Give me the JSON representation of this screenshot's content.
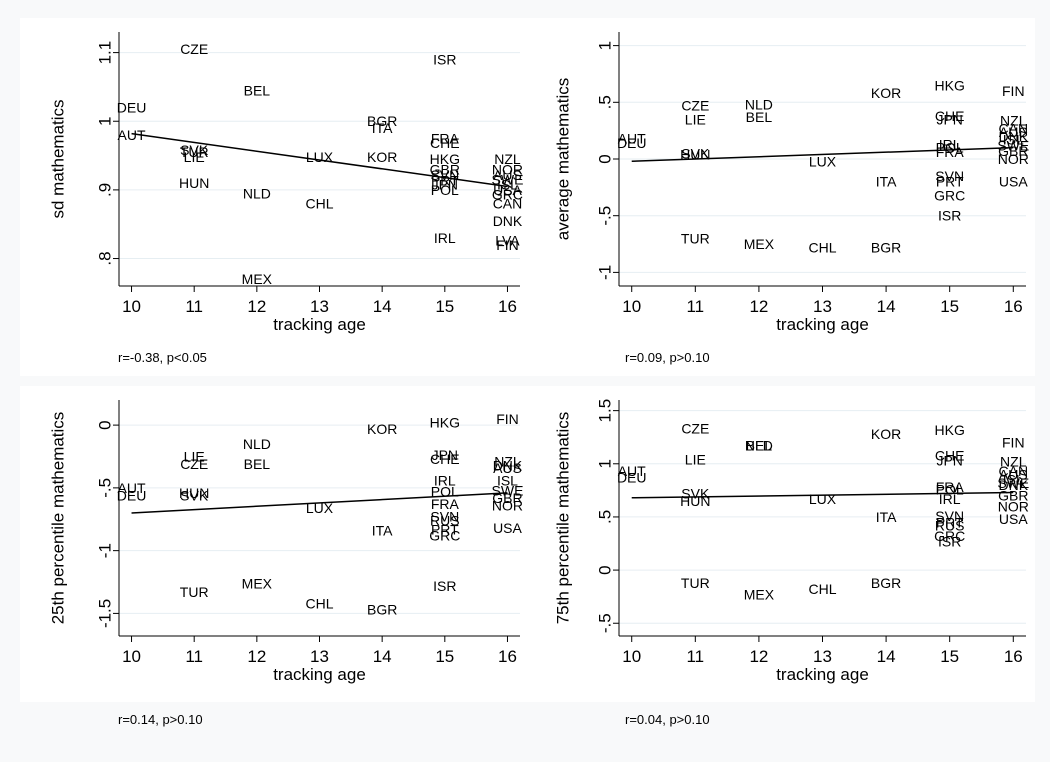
{
  "chart_data": [
    {
      "type": "scatter",
      "ylabel": "sd mathematics",
      "xlabel": "tracking age",
      "xlim": [
        9.8,
        16.2
      ],
      "ylim": [
        0.76,
        1.13
      ],
      "x_ticks": [
        10,
        11,
        12,
        13,
        14,
        15,
        16
      ],
      "y_ticks": [
        {
          "v": 0.8,
          "label": ".8"
        },
        {
          "v": 0.9,
          "label": ".9"
        },
        {
          "v": 1.0,
          "label": "1"
        },
        {
          "v": 1.1,
          "label": "1.1"
        }
      ],
      "fit_line": {
        "x": [
          10,
          16
        ],
        "y": [
          0.982,
          0.905
        ]
      },
      "stat": "r=-0.38, p<0.05",
      "points": [
        {
          "label": "CZE",
          "x": 11,
          "y": 1.105
        },
        {
          "label": "ISR",
          "x": 15,
          "y": 1.09
        },
        {
          "label": "BEL",
          "x": 12,
          "y": 1.045
        },
        {
          "label": "DEU",
          "x": 10,
          "y": 1.02
        },
        {
          "label": "BGR",
          "x": 14,
          "y": 1.0
        },
        {
          "label": "ITA",
          "x": 14,
          "y": 0.99
        },
        {
          "label": "AUT",
          "x": 10,
          "y": 0.98
        },
        {
          "label": "FRA",
          "x": 15,
          "y": 0.975
        },
        {
          "label": "CHE",
          "x": 15,
          "y": 0.968
        },
        {
          "label": "SVK",
          "x": 11,
          "y": 0.958
        },
        {
          "label": "TUR",
          "x": 11,
          "y": 0.955
        },
        {
          "label": "LIE",
          "x": 11,
          "y": 0.948
        },
        {
          "label": "LUX",
          "x": 13,
          "y": 0.948
        },
        {
          "label": "KOR",
          "x": 14,
          "y": 0.948
        },
        {
          "label": "HKG",
          "x": 15,
          "y": 0.945
        },
        {
          "label": "NZL",
          "x": 16,
          "y": 0.945
        },
        {
          "label": "GBR",
          "x": 15,
          "y": 0.93
        },
        {
          "label": "NOR",
          "x": 16,
          "y": 0.93
        },
        {
          "label": "SVN",
          "x": 15,
          "y": 0.922
        },
        {
          "label": "AUS",
          "x": 16,
          "y": 0.922
        },
        {
          "label": "PRT",
          "x": 15,
          "y": 0.914
        },
        {
          "label": "SWE",
          "x": 16,
          "y": 0.915
        },
        {
          "label": "HUN",
          "x": 11,
          "y": 0.91
        },
        {
          "label": "JPN",
          "x": 15,
          "y": 0.908
        },
        {
          "label": "ISL",
          "x": 16,
          "y": 0.908
        },
        {
          "label": "POL",
          "x": 15,
          "y": 0.9
        },
        {
          "label": "USA",
          "x": 16,
          "y": 0.9
        },
        {
          "label": "NLD",
          "x": 12,
          "y": 0.895
        },
        {
          "label": "GRC",
          "x": 16,
          "y": 0.893
        },
        {
          "label": "CHL",
          "x": 13,
          "y": 0.88
        },
        {
          "label": "CAN",
          "x": 16,
          "y": 0.88
        },
        {
          "label": "DNK",
          "x": 16,
          "y": 0.855
        },
        {
          "label": "IRL",
          "x": 15,
          "y": 0.83
        },
        {
          "label": "LVA",
          "x": 16,
          "y": 0.826
        },
        {
          "label": "FIN",
          "x": 16,
          "y": 0.82
        },
        {
          "label": "MEX",
          "x": 12,
          "y": 0.77
        }
      ]
    },
    {
      "type": "scatter",
      "ylabel": "average mathematics",
      "xlabel": "tracking age",
      "xlim": [
        9.8,
        16.2
      ],
      "ylim": [
        -1.12,
        1.12
      ],
      "x_ticks": [
        10,
        11,
        12,
        13,
        14,
        15,
        16
      ],
      "y_ticks": [
        {
          "v": -1,
          "label": "-1"
        },
        {
          "v": -0.5,
          "label": "-.5"
        },
        {
          "v": 0,
          "label": "0"
        },
        {
          "v": 0.5,
          "label": ".5"
        },
        {
          "v": 1,
          "label": "1"
        }
      ],
      "fit_line": {
        "x": [
          10,
          16
        ],
        "y": [
          -0.02,
          0.1
        ]
      },
      "stat": "r=0.09, p>0.10",
      "points": [
        {
          "label": "HKG",
          "x": 15,
          "y": 0.65
        },
        {
          "label": "FIN",
          "x": 16,
          "y": 0.6
        },
        {
          "label": "KOR",
          "x": 14,
          "y": 0.58
        },
        {
          "label": "NLD",
          "x": 12,
          "y": 0.48
        },
        {
          "label": "CZE",
          "x": 11,
          "y": 0.47
        },
        {
          "label": "BEL",
          "x": 12,
          "y": 0.37
        },
        {
          "label": "CHE",
          "x": 15,
          "y": 0.38
        },
        {
          "label": "LIE",
          "x": 11,
          "y": 0.35
        },
        {
          "label": "JPN",
          "x": 15,
          "y": 0.35
        },
        {
          "label": "NZL",
          "x": 16,
          "y": 0.34
        },
        {
          "label": "CAN",
          "x": 16,
          "y": 0.27
        },
        {
          "label": "AUS",
          "x": 16,
          "y": 0.24
        },
        {
          "label": "DNK",
          "x": 16,
          "y": 0.2
        },
        {
          "label": "ISL",
          "x": 16,
          "y": 0.17
        },
        {
          "label": "AUT",
          "x": 10,
          "y": 0.18
        },
        {
          "label": "DEU",
          "x": 10,
          "y": 0.14
        },
        {
          "label": "IRL",
          "x": 15,
          "y": 0.13
        },
        {
          "label": "SWE",
          "x": 16,
          "y": 0.12
        },
        {
          "label": "POL",
          "x": 15,
          "y": 0.1
        },
        {
          "label": "SVK",
          "x": 11,
          "y": 0.05
        },
        {
          "label": "HUN",
          "x": 11,
          "y": 0.04
        },
        {
          "label": "FRA",
          "x": 15,
          "y": 0.06
        },
        {
          "label": "GBR",
          "x": 16,
          "y": 0.07
        },
        {
          "label": "NOR",
          "x": 16,
          "y": 0.0
        },
        {
          "label": "LUX",
          "x": 13,
          "y": -0.02
        },
        {
          "label": "SVN",
          "x": 15,
          "y": -0.15
        },
        {
          "label": "USA",
          "x": 16,
          "y": -0.2
        },
        {
          "label": "ITA",
          "x": 14,
          "y": -0.2
        },
        {
          "label": "PRT",
          "x": 15,
          "y": -0.2
        },
        {
          "label": "GRC",
          "x": 15,
          "y": -0.32
        },
        {
          "label": "ISR",
          "x": 15,
          "y": -0.5
        },
        {
          "label": "TUR",
          "x": 11,
          "y": -0.7
        },
        {
          "label": "MEX",
          "x": 12,
          "y": -0.75
        },
        {
          "label": "CHL",
          "x": 13,
          "y": -0.78
        },
        {
          "label": "BGR",
          "x": 14,
          "y": -0.78
        }
      ]
    },
    {
      "type": "scatter",
      "ylabel": "25th percentile mathematics",
      "xlabel": "tracking age",
      "xlim": [
        9.8,
        16.2
      ],
      "ylim": [
        -1.68,
        0.2
      ],
      "x_ticks": [
        10,
        11,
        12,
        13,
        14,
        15,
        16
      ],
      "y_ticks": [
        {
          "v": -1.5,
          "label": "-1.5"
        },
        {
          "v": -1,
          "label": "-1"
        },
        {
          "v": -0.5,
          "label": "-.5"
        },
        {
          "v": 0,
          "label": "0"
        }
      ],
      "fit_line": {
        "x": [
          10,
          16
        ],
        "y": [
          -0.7,
          -0.54
        ]
      },
      "stat": "r=0.14, p>0.10",
      "points": [
        {
          "label": "FIN",
          "x": 16,
          "y": 0.05
        },
        {
          "label": "HKG",
          "x": 15,
          "y": 0.02
        },
        {
          "label": "KOR",
          "x": 14,
          "y": -0.03
        },
        {
          "label": "NLD",
          "x": 12,
          "y": -0.15
        },
        {
          "label": "JPN",
          "x": 15,
          "y": -0.24
        },
        {
          "label": "LIE",
          "x": 11,
          "y": -0.25
        },
        {
          "label": "CHE",
          "x": 15,
          "y": -0.27
        },
        {
          "label": "NZL",
          "x": 16,
          "y": -0.29
        },
        {
          "label": "CZE",
          "x": 11,
          "y": -0.31
        },
        {
          "label": "BEL",
          "x": 12,
          "y": -0.31
        },
        {
          "label": "DNK",
          "x": 16,
          "y": -0.32
        },
        {
          "label": "AUS",
          "x": 16,
          "y": -0.34
        },
        {
          "label": "IRL",
          "x": 15,
          "y": -0.44
        },
        {
          "label": "ISL",
          "x": 16,
          "y": -0.44
        },
        {
          "label": "AUT",
          "x": 10,
          "y": -0.5
        },
        {
          "label": "SWE",
          "x": 16,
          "y": -0.52
        },
        {
          "label": "POL",
          "x": 15,
          "y": -0.53
        },
        {
          "label": "HUN",
          "x": 11,
          "y": -0.54
        },
        {
          "label": "SVK",
          "x": 11,
          "y": -0.56
        },
        {
          "label": "DEU",
          "x": 10,
          "y": -0.56
        },
        {
          "label": "GBR",
          "x": 16,
          "y": -0.58
        },
        {
          "label": "NOR",
          "x": 16,
          "y": -0.64
        },
        {
          "label": "FRA",
          "x": 15,
          "y": -0.63
        },
        {
          "label": "LUX",
          "x": 13,
          "y": -0.66
        },
        {
          "label": "SVN",
          "x": 15,
          "y": -0.73
        },
        {
          "label": "RUS",
          "x": 15,
          "y": -0.76
        },
        {
          "label": "USA",
          "x": 16,
          "y": -0.82
        },
        {
          "label": "PRT",
          "x": 15,
          "y": -0.83
        },
        {
          "label": "ITA",
          "x": 14,
          "y": -0.84
        },
        {
          "label": "GRC",
          "x": 15,
          "y": -0.88
        },
        {
          "label": "MEX",
          "x": 12,
          "y": -1.26
        },
        {
          "label": "ISR",
          "x": 15,
          "y": -1.28
        },
        {
          "label": "TUR",
          "x": 11,
          "y": -1.33
        },
        {
          "label": "CHL",
          "x": 13,
          "y": -1.42
        },
        {
          "label": "BGR",
          "x": 14,
          "y": -1.47
        }
      ]
    },
    {
      "type": "scatter",
      "ylabel": "75th percentile mathematics",
      "xlabel": "tracking age",
      "xlim": [
        9.8,
        16.2
      ],
      "ylim": [
        -0.62,
        1.6
      ],
      "x_ticks": [
        10,
        11,
        12,
        13,
        14,
        15,
        16
      ],
      "y_ticks": [
        {
          "v": -0.5,
          "label": "-.5"
        },
        {
          "v": 0,
          "label": "0"
        },
        {
          "v": 0.5,
          "label": ".5"
        },
        {
          "v": 1,
          "label": "1"
        },
        {
          "v": 1.5,
          "label": "1.5"
        }
      ],
      "fit_line": {
        "x": [
          10,
          16
        ],
        "y": [
          0.68,
          0.73
        ]
      },
      "stat": "r=0.04, p>0.10",
      "points": [
        {
          "label": "HKG",
          "x": 15,
          "y": 1.32
        },
        {
          "label": "CZE",
          "x": 11,
          "y": 1.33
        },
        {
          "label": "KOR",
          "x": 14,
          "y": 1.28
        },
        {
          "label": "FIN",
          "x": 16,
          "y": 1.2
        },
        {
          "label": "NLD",
          "x": 12,
          "y": 1.17
        },
        {
          "label": "BEL",
          "x": 12,
          "y": 1.17
        },
        {
          "label": "CHE",
          "x": 15,
          "y": 1.08
        },
        {
          "label": "JPN",
          "x": 15,
          "y": 1.03
        },
        {
          "label": "LIE",
          "x": 11,
          "y": 1.04
        },
        {
          "label": "NZL",
          "x": 16,
          "y": 1.02
        },
        {
          "label": "AUT",
          "x": 10,
          "y": 0.93
        },
        {
          "label": "CAN",
          "x": 16,
          "y": 0.93
        },
        {
          "label": "AUS",
          "x": 16,
          "y": 0.9
        },
        {
          "label": "DEU",
          "x": 10,
          "y": 0.87
        },
        {
          "label": "ISL",
          "x": 16,
          "y": 0.85
        },
        {
          "label": "SWE",
          "x": 16,
          "y": 0.82
        },
        {
          "label": "DNK",
          "x": 16,
          "y": 0.8
        },
        {
          "label": "FRA",
          "x": 15,
          "y": 0.78
        },
        {
          "label": "POL",
          "x": 15,
          "y": 0.76
        },
        {
          "label": "SVK",
          "x": 11,
          "y": 0.72
        },
        {
          "label": "GBR",
          "x": 16,
          "y": 0.7
        },
        {
          "label": "LUX",
          "x": 13,
          "y": 0.67
        },
        {
          "label": "IRL",
          "x": 15,
          "y": 0.67
        },
        {
          "label": "HUN",
          "x": 11,
          "y": 0.65
        },
        {
          "label": "NOR",
          "x": 16,
          "y": 0.6
        },
        {
          "label": "USA",
          "x": 16,
          "y": 0.48
        },
        {
          "label": "ITA",
          "x": 14,
          "y": 0.5
        },
        {
          "label": "SVN",
          "x": 15,
          "y": 0.51
        },
        {
          "label": "PRT",
          "x": 15,
          "y": 0.45
        },
        {
          "label": "RUS",
          "x": 15,
          "y": 0.42
        },
        {
          "label": "GRC",
          "x": 15,
          "y": 0.32
        },
        {
          "label": "ISR",
          "x": 15,
          "y": 0.27
        },
        {
          "label": "TUR",
          "x": 11,
          "y": -0.12
        },
        {
          "label": "BGR",
          "x": 14,
          "y": -0.12
        },
        {
          "label": "CHL",
          "x": 13,
          "y": -0.18
        },
        {
          "label": "MEX",
          "x": 12,
          "y": -0.23
        }
      ]
    }
  ]
}
